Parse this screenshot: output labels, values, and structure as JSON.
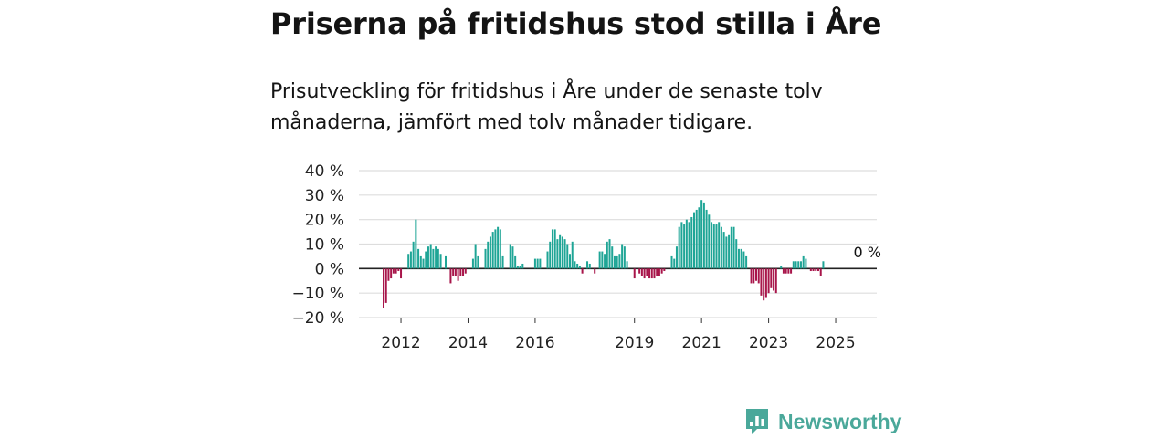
{
  "title": "Priserna på fritidshus stod stilla i Åre",
  "subtitle": "Prisutveckling för fritidshus i Åre under de senaste tolv månaderna, jämfört med tolv månader tidigare.",
  "brand": {
    "name": "Newsworthy",
    "icon": "newsworthy-logo-icon"
  },
  "colors": {
    "positive": "#1fa596",
    "negative": "#a8154a",
    "grid": "#dddddd",
    "zero_line": "#222222"
  },
  "chart_data": {
    "type": "bar",
    "title": "",
    "xlabel": "",
    "ylabel": "",
    "ylim": [
      -20,
      40
    ],
    "y_ticks": [
      40,
      30,
      20,
      10,
      0,
      -10,
      -20
    ],
    "y_tick_labels": [
      "40 %",
      "30 %",
      "20 %",
      "10 %",
      "0 %",
      "−10 %",
      "−20 %"
    ],
    "x_tick_labels": [
      "2012",
      "2014",
      "2016",
      "2019",
      "2021",
      "2023",
      "2025"
    ],
    "x_tick_index": [
      7,
      34,
      61,
      101,
      128,
      155,
      182
    ],
    "end_label": "0 %",
    "end_label_index": 191,
    "values": [
      -16,
      -14,
      -5,
      -4,
      -2,
      -2,
      -1,
      -4,
      0,
      0,
      6,
      7,
      11,
      20,
      8,
      5,
      4,
      7,
      9,
      10,
      8,
      9,
      8,
      6,
      0,
      5,
      0,
      -6,
      -3,
      -3,
      -5,
      -3,
      -3,
      -2,
      0,
      0,
      4,
      10,
      5,
      0,
      0,
      8,
      11,
      13,
      15,
      16,
      17,
      16,
      5,
      0,
      0,
      10,
      9,
      5,
      1,
      1,
      2,
      0,
      0,
      0,
      0,
      4,
      4,
      4,
      0,
      0,
      7,
      11,
      16,
      16,
      12,
      14,
      13,
      12,
      10,
      6,
      11,
      3,
      2,
      1,
      -2,
      0,
      3,
      2,
      0,
      -2,
      0,
      7,
      7,
      6,
      11,
      12,
      9,
      5,
      5,
      6,
      10,
      9,
      3,
      0,
      0,
      -4,
      0,
      -2,
      -3,
      -4,
      -3,
      -4,
      -4,
      -4,
      -3,
      -3,
      -2,
      -1,
      0,
      0,
      5,
      4,
      9,
      17,
      19,
      18,
      20,
      19,
      21,
      23,
      24,
      25,
      28,
      27,
      24,
      22,
      19,
      18,
      18,
      19,
      17,
      15,
      13,
      14,
      17,
      17,
      12,
      8,
      8,
      7,
      5,
      0,
      -6,
      -6,
      -5,
      -6,
      -11,
      -13,
      -12,
      -10,
      -8,
      -9,
      -10,
      0,
      1,
      -2,
      -2,
      -2,
      -2,
      3,
      3,
      3,
      3,
      5,
      4,
      0,
      -1,
      -1,
      -1,
      -1,
      -3,
      3
    ]
  }
}
